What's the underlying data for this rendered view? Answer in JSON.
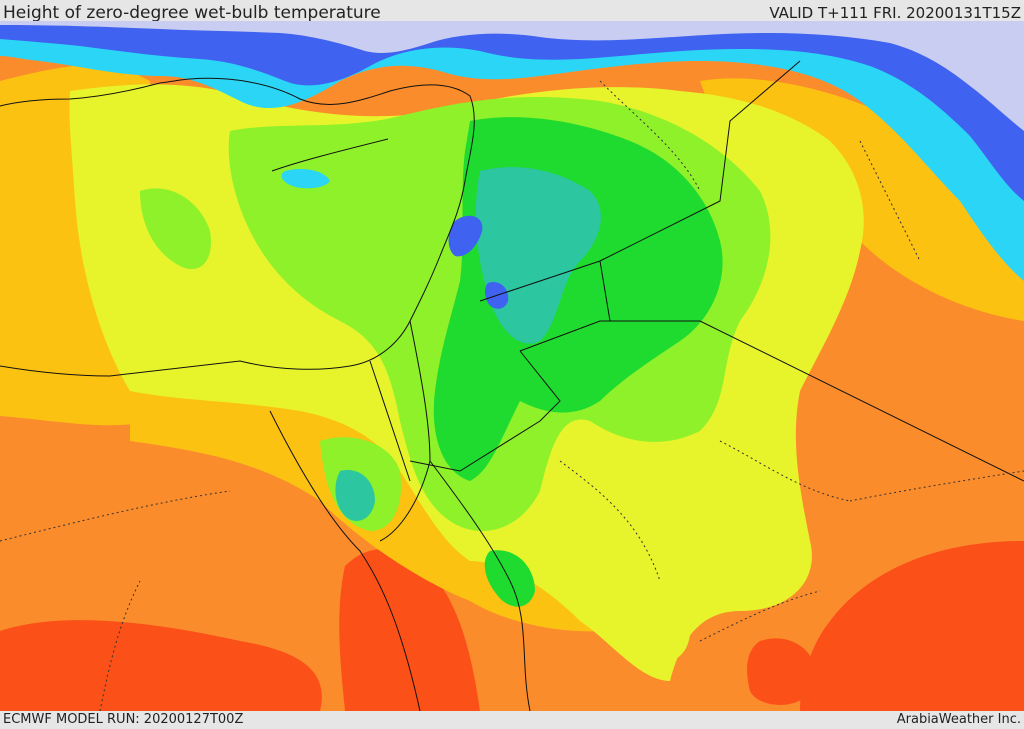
{
  "header": {
    "title": "Height of zero-degree wet-bulb temperature",
    "valid": "VALID T+111 FRI. 20200131T15Z"
  },
  "footer": {
    "model_run": "ECMWF MODEL RUN: 20200127T00Z",
    "credit": "ArabiaWeather Inc."
  },
  "palette": {
    "sea_north": "#c9cdf2",
    "blue": "#3f62f0",
    "cyan": "#2bd5f5",
    "teal": "#2cc6a0",
    "green": "#1fdb30",
    "light_green": "#8ef12a",
    "yellow": "#e7f42b",
    "gold": "#fbc212",
    "orange": "#fb8c2c",
    "red_orange": "#fb5119",
    "border": "#111111"
  }
}
